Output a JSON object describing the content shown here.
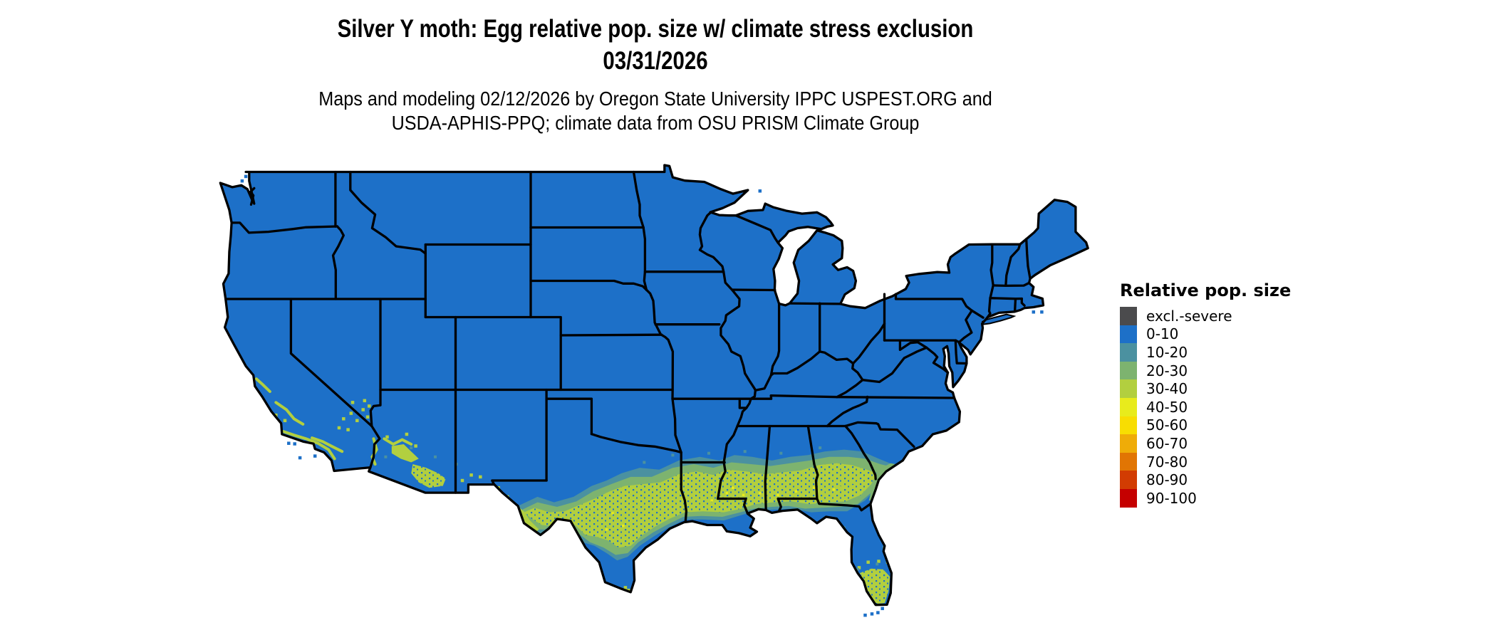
{
  "header": {
    "title_line1": "Silver Y moth: Egg relative pop. size w/ climate stress exclusion",
    "title_line2": "03/31/2026",
    "subtitle_line1": "Maps and modeling 02/12/2026 by Oregon State University IPPC USPEST.ORG and",
    "subtitle_line2": "USDA-APHIS-PPQ; climate data from OSU PRISM Climate Group"
  },
  "legend": {
    "title": "Relative pop. size",
    "entries": [
      {
        "label": "excl.-severe",
        "color": "#4b4b4d"
      },
      {
        "label": "0-10",
        "color": "#1d70c8"
      },
      {
        "label": "10-20",
        "color": "#4b91a0"
      },
      {
        "label": "20-30",
        "color": "#7db36f"
      },
      {
        "label": "30-40",
        "color": "#b2cf3f"
      },
      {
        "label": "40-50",
        "color": "#e8eb1c"
      },
      {
        "label": "50-60",
        "color": "#f8dd02"
      },
      {
        "label": "60-70",
        "color": "#efac08"
      },
      {
        "label": "70-80",
        "color": "#e17503"
      },
      {
        "label": "80-90",
        "color": "#d23c02"
      },
      {
        "label": "90-100",
        "color": "#c50000"
      }
    ]
  },
  "map": {
    "region": "contiguous United States",
    "land_class": "0-10",
    "background_color": "#ffffff",
    "state_border_color": "#000000"
  }
}
